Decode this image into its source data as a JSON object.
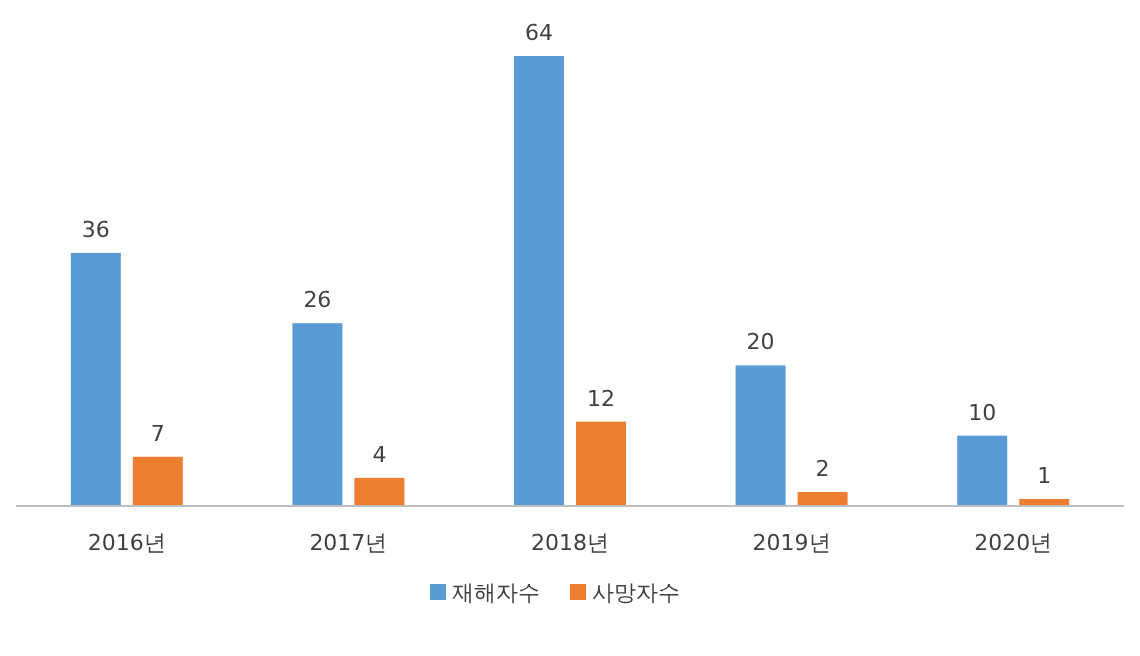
{
  "chart_data": {
    "type": "bar",
    "categories": [
      "2016년",
      "2017년",
      "2018년",
      "2019년",
      "2020년"
    ],
    "series": [
      {
        "name": "재해자수",
        "color": "#5b9bd5",
        "values": [
          36,
          26,
          64,
          20,
          10
        ]
      },
      {
        "name": "사망자수",
        "color": "#ed7d31",
        "values": [
          7,
          4,
          12,
          2,
          1
        ]
      }
    ],
    "data_labels": true,
    "legend": "bottom"
  }
}
